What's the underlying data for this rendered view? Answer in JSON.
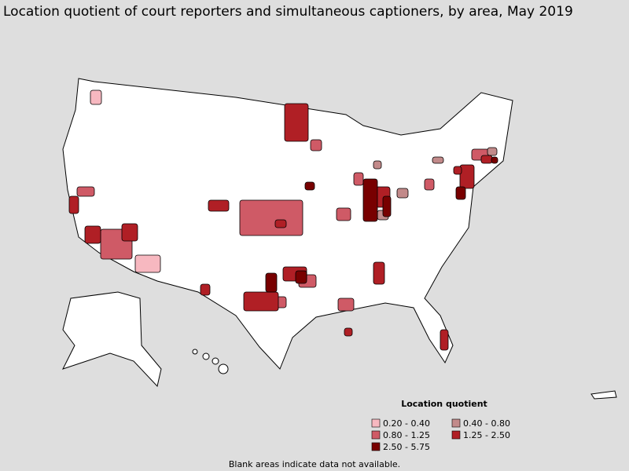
{
  "title": "Location quotient of court reporters and simultaneous captioners, by area, May 2019",
  "legend": {
    "title": "Location quotient",
    "items": [
      {
        "label": "0.20 - 0.40",
        "color": "#f7b8c0"
      },
      {
        "label": "0.40 - 0.80",
        "color": "#c28a8a"
      },
      {
        "label": "0.80 - 1.25",
        "color": "#cf5a66"
      },
      {
        "label": "1.25 - 2.50",
        "color": "#b01f25"
      },
      {
        "label": "2.50 - 5.75",
        "color": "#780000"
      }
    ]
  },
  "note": "Blank areas indicate data not available."
}
